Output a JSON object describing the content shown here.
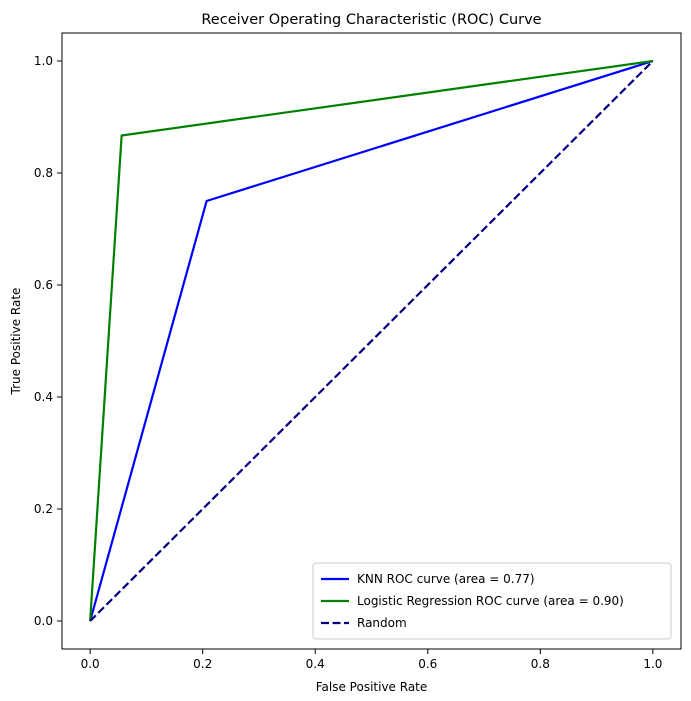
{
  "chart_data": {
    "type": "line",
    "title": "Receiver Operating Characteristic (ROC) Curve",
    "xlabel": "False Positive Rate",
    "ylabel": "True Positive Rate",
    "xlim": [
      -0.05,
      1.05
    ],
    "ylim": [
      -0.05,
      1.05
    ],
    "xticks": [
      "0.0",
      "0.2",
      "0.4",
      "0.6",
      "0.8",
      "1.0"
    ],
    "yticks": [
      "0.0",
      "0.2",
      "0.4",
      "0.6",
      "0.8",
      "1.0"
    ],
    "grid": false,
    "legend_position": "lower-right",
    "series": [
      {
        "name": "KNN ROC curve (area = 0.77)",
        "color": "#0000ff",
        "style": "solid",
        "x": [
          0.0,
          0.207,
          1.0
        ],
        "y": [
          0.0,
          0.75,
          1.0
        ]
      },
      {
        "name": "Logistic Regression ROC curve (area = 0.90)",
        "color": "#008000",
        "style": "solid",
        "x": [
          0.0,
          0.056,
          1.0
        ],
        "y": [
          0.0,
          0.867,
          1.0
        ]
      },
      {
        "name": "Random",
        "color": "#000080",
        "style": "dashed",
        "x": [
          0.0,
          1.0
        ],
        "y": [
          0.0,
          1.0
        ]
      }
    ]
  }
}
